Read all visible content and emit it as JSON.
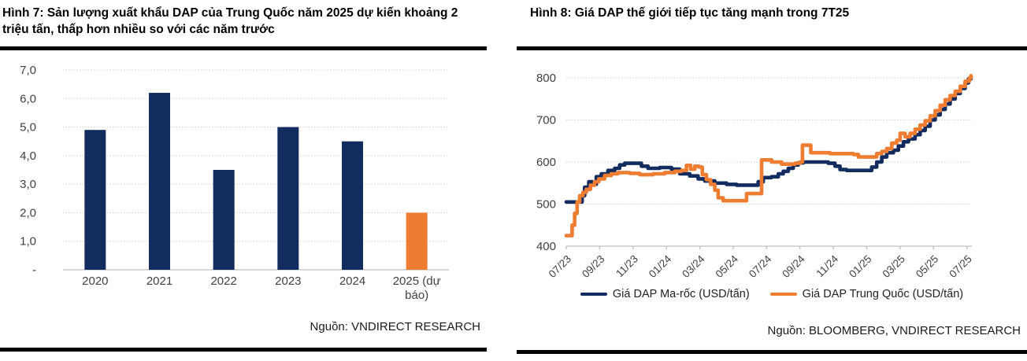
{
  "colors": {
    "navy": "#122c5f",
    "orange": "#ee7d31",
    "gridline": "#d9d9d9",
    "axis_line": "#bfbfbf",
    "axis_text": "#404040",
    "rule": "#000000"
  },
  "left_panel": {
    "title": "Hình 7: Sản lượng xuất khẩu DAP của Trung Quốc năm 2025 dự kiến khoảng 2 triệu tấn, thấp hơn nhiều so với các năm trước",
    "source": "Nguồn: VNDIRECT RESEARCH"
  },
  "right_panel": {
    "title": "Hình 8: Giá DAP thế giới tiếp tục tăng mạnh trong 7T25",
    "source": "Nguồn: BLOOMBERG, VNDIRECT RESEARCH"
  },
  "chart_data": [
    {
      "type": "bar",
      "title": "Hình 7: Sản lượng xuất khẩu DAP của Trung Quốc năm 2025 dự kiến khoảng 2 triệu tấn, thấp hơn nhiều so với các năm trước",
      "source": "Nguồn: VNDIRECT RESEARCH",
      "categories": [
        "2020",
        "2021",
        "2022",
        "2023",
        "2024",
        "2025 (dự báo)"
      ],
      "values": [
        4.9,
        6.2,
        3.5,
        5.0,
        4.5,
        2.0
      ],
      "bar_colors": [
        "navy",
        "navy",
        "navy",
        "navy",
        "navy",
        "orange"
      ],
      "ylim": [
        0,
        7
      ],
      "ytick_values": [
        0,
        1,
        2,
        3,
        4,
        5,
        6,
        7
      ],
      "ytick_labels": [
        "-",
        "1,0",
        "2,0",
        "3,0",
        "4,0",
        "5,0",
        "6,0",
        "7,0"
      ],
      "grid": true,
      "legend": false
    },
    {
      "type": "line",
      "title": "Hình 8: Giá DAP thế giới tiếp tục tăng mạnh trong 7T25",
      "source": "Nguồn: BLOOMBERG, VNDIRECT RESEARCH",
      "ylim": [
        400,
        800
      ],
      "ytick_values": [
        400,
        500,
        600,
        700,
        800
      ],
      "ytick_labels": [
        "400",
        "500",
        "600",
        "700",
        "800"
      ],
      "xtick_labels": [
        "07/23",
        "09/23",
        "11/23",
        "01/24",
        "03/24",
        "05/24",
        "07/24",
        "09/24",
        "11/24",
        "01/25",
        "03/25",
        "05/25",
        "07/25"
      ],
      "x_unit": "months since 07/23",
      "x_range": [
        0,
        24.3
      ],
      "grid": true,
      "legend_position": "bottom",
      "series": [
        {
          "name": "Giá DAP Ma-rốc (USD/tấn)",
          "color": "navy",
          "points": [
            [
              0,
              505
            ],
            [
              0.8,
              505
            ],
            [
              0.95,
              520
            ],
            [
              1.1,
              540
            ],
            [
              1.35,
              553
            ],
            [
              1.55,
              547
            ],
            [
              1.8,
              565
            ],
            [
              2.1,
              572
            ],
            [
              2.5,
              580
            ],
            [
              2.9,
              585
            ],
            [
              3.2,
              593
            ],
            [
              3.5,
              597
            ],
            [
              4.2,
              597
            ],
            [
              4.5,
              590
            ],
            [
              4.9,
              585
            ],
            [
              5.6,
              587
            ],
            [
              6.3,
              583
            ],
            [
              6.8,
              572
            ],
            [
              7.4,
              567
            ],
            [
              7.9,
              560
            ],
            [
              8.3,
              555
            ],
            [
              8.9,
              550
            ],
            [
              9.6,
              547
            ],
            [
              10.2,
              545
            ],
            [
              11.1,
              545
            ],
            [
              11.5,
              553
            ],
            [
              11.8,
              563
            ],
            [
              12.3,
              565
            ],
            [
              12.7,
              572
            ],
            [
              13.0,
              578
            ],
            [
              13.3,
              585
            ],
            [
              13.6,
              593
            ],
            [
              13.9,
              598
            ],
            [
              14.2,
              600
            ],
            [
              15.3,
              600
            ],
            [
              15.7,
              597
            ],
            [
              16.1,
              590
            ],
            [
              16.4,
              582
            ],
            [
              16.8,
              580
            ],
            [
              18.0,
              580
            ],
            [
              18.3,
              588
            ],
            [
              18.6,
              600
            ],
            [
              18.9,
              612
            ],
            [
              19.2,
              622
            ],
            [
              19.6,
              628
            ],
            [
              19.9,
              638
            ],
            [
              20.2,
              648
            ],
            [
              20.5,
              655
            ],
            [
              20.9,
              665
            ],
            [
              21.2,
              675
            ],
            [
              21.5,
              685
            ],
            [
              21.8,
              700
            ],
            [
              22.1,
              712
            ],
            [
              22.4,
              725
            ],
            [
              22.7,
              738
            ],
            [
              23.0,
              750
            ],
            [
              23.3,
              763
            ],
            [
              23.6,
              775
            ],
            [
              23.9,
              788
            ],
            [
              24.1,
              798
            ],
            [
              24.25,
              802
            ]
          ]
        },
        {
          "name": "Giá DAP Trung Quốc (USD/tấn)",
          "color": "orange",
          "points": [
            [
              0,
              425
            ],
            [
              0.25,
              425
            ],
            [
              0.35,
              450
            ],
            [
              0.5,
              478
            ],
            [
              0.65,
              505
            ],
            [
              0.8,
              520
            ],
            [
              1.0,
              528
            ],
            [
              1.2,
              535
            ],
            [
              1.45,
              545
            ],
            [
              1.7,
              553
            ],
            [
              1.95,
              560
            ],
            [
              2.3,
              568
            ],
            [
              2.7,
              572
            ],
            [
              3.1,
              575
            ],
            [
              3.8,
              573
            ],
            [
              4.4,
              570
            ],
            [
              5.2,
              572
            ],
            [
              5.9,
              575
            ],
            [
              6.5,
              578
            ],
            [
              6.9,
              580
            ],
            [
              7.2,
              592
            ],
            [
              7.45,
              583
            ],
            [
              7.7,
              590
            ],
            [
              7.95,
              588
            ],
            [
              8.15,
              570
            ],
            [
              8.4,
              558
            ],
            [
              8.65,
              547
            ],
            [
              8.9,
              533
            ],
            [
              9.1,
              515
            ],
            [
              9.4,
              508
            ],
            [
              10.5,
              508
            ],
            [
              10.8,
              525
            ],
            [
              11.55,
              525
            ],
            [
              11.7,
              605
            ],
            [
              12.3,
              600
            ],
            [
              12.9,
              595
            ],
            [
              13.7,
              597
            ],
            [
              14.0,
              600
            ],
            [
              14.15,
              640
            ],
            [
              14.5,
              640
            ],
            [
              14.65,
              622
            ],
            [
              15.8,
              620
            ],
            [
              17.2,
              618
            ],
            [
              17.5,
              612
            ],
            [
              18.3,
              612
            ],
            [
              18.6,
              620
            ],
            [
              18.9,
              625
            ],
            [
              19.2,
              632
            ],
            [
              19.5,
              645
            ],
            [
              19.8,
              652
            ],
            [
              20.0,
              668
            ],
            [
              20.3,
              660
            ],
            [
              20.6,
              668
            ],
            [
              20.9,
              678
            ],
            [
              21.2,
              688
            ],
            [
              21.5,
              698
            ],
            [
              21.8,
              710
            ],
            [
              22.1,
              722
            ],
            [
              22.4,
              735
            ],
            [
              22.7,
              748
            ],
            [
              23.0,
              758
            ],
            [
              23.3,
              768
            ],
            [
              23.6,
              780
            ],
            [
              23.9,
              792
            ],
            [
              24.15,
              800
            ],
            [
              24.25,
              805
            ]
          ]
        }
      ]
    }
  ]
}
